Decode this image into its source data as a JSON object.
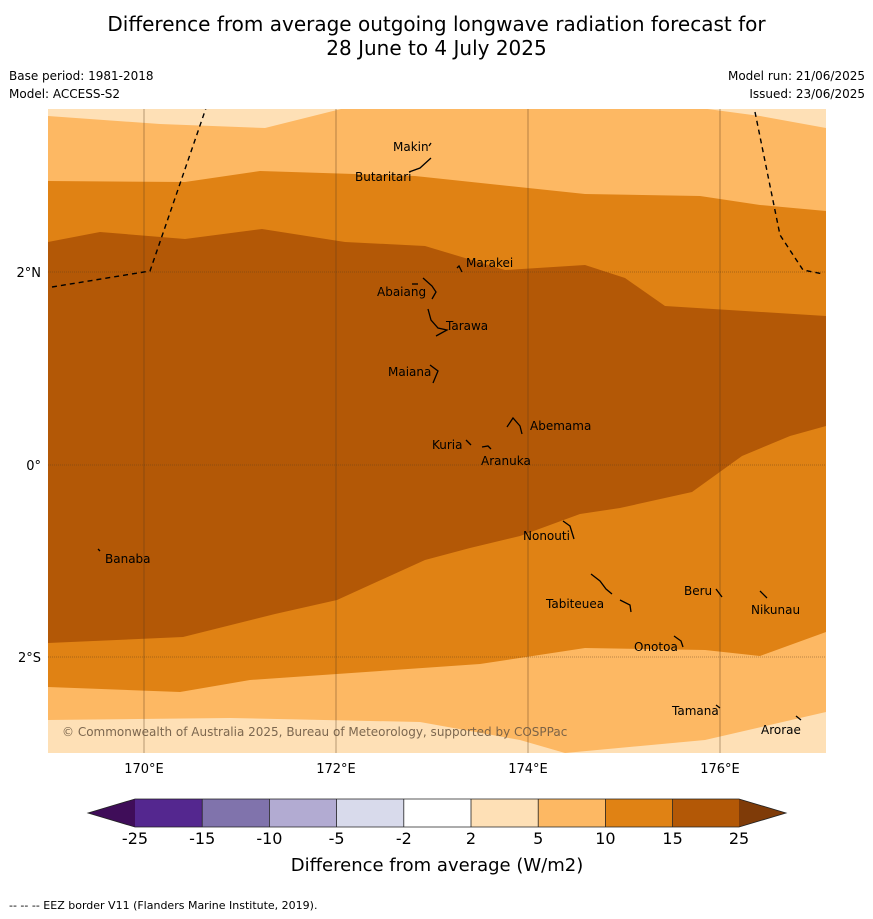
{
  "title_line1": "Difference from average outgoing longwave radiation forecast for",
  "title_line2": "28 June to 4 July 2025",
  "base_period": "Base period: 1981-2018",
  "model": "Model: ACCESS-S2",
  "model_run": "Model run: 21/06/2025",
  "issued": "Issued: 23/06/2025",
  "copyright": "© Commonwealth of Australia 2025, Bureau of Meteorology, supported by COSPPac",
  "footer_note": "--  --  -- EEZ border V11 (Flanders Marine Institute, 2019).",
  "map": {
    "lon_ticks": [
      "170°E",
      "172°E",
      "174°E",
      "176°E"
    ],
    "lat_ticks": [
      "2°N",
      "0°",
      "2°S"
    ],
    "places": [
      "Makin",
      "Butaritari",
      "Marakei",
      "Abaiang",
      "Tarawa",
      "Maiana",
      "Abemama",
      "Kuria",
      "Aranuka",
      "Nonouti",
      "Banaba",
      "Tabiteuea",
      "Beru",
      "Nikunau",
      "Onotoa",
      "Tamana",
      "Arorae"
    ]
  },
  "colorbar": {
    "label": "Difference from average (W/m2)",
    "ticks": [
      "-25",
      "-15",
      "-10",
      "-5",
      "-2",
      "2",
      "5",
      "10",
      "15",
      "25"
    ],
    "colors": {
      "below_-25": "#3f0d59",
      "-25_-15": "#54278f",
      "-15_-10": "#8073ac",
      "-10_-5": "#b2abd2",
      "-5_-2": "#d8daeb",
      "-2_2": "#ffffff",
      "2_5": "#fee0b6",
      "5_10": "#fdb863",
      "10_15": "#e08214",
      "15_25": "#b35806",
      "above_25": "#7f3b08"
    }
  }
}
